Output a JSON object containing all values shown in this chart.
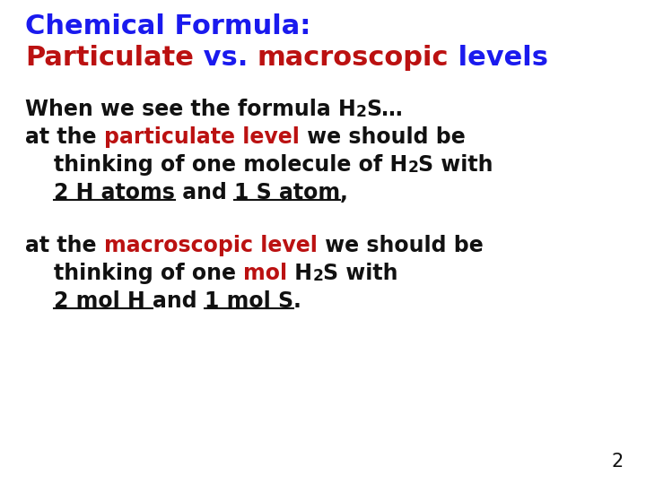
{
  "bg_color": "#ffffff",
  "blue": "#1a1aee",
  "red": "#bb1111",
  "black": "#111111",
  "title_fs": 22,
  "body_fs": 17,
  "page_num": "2"
}
